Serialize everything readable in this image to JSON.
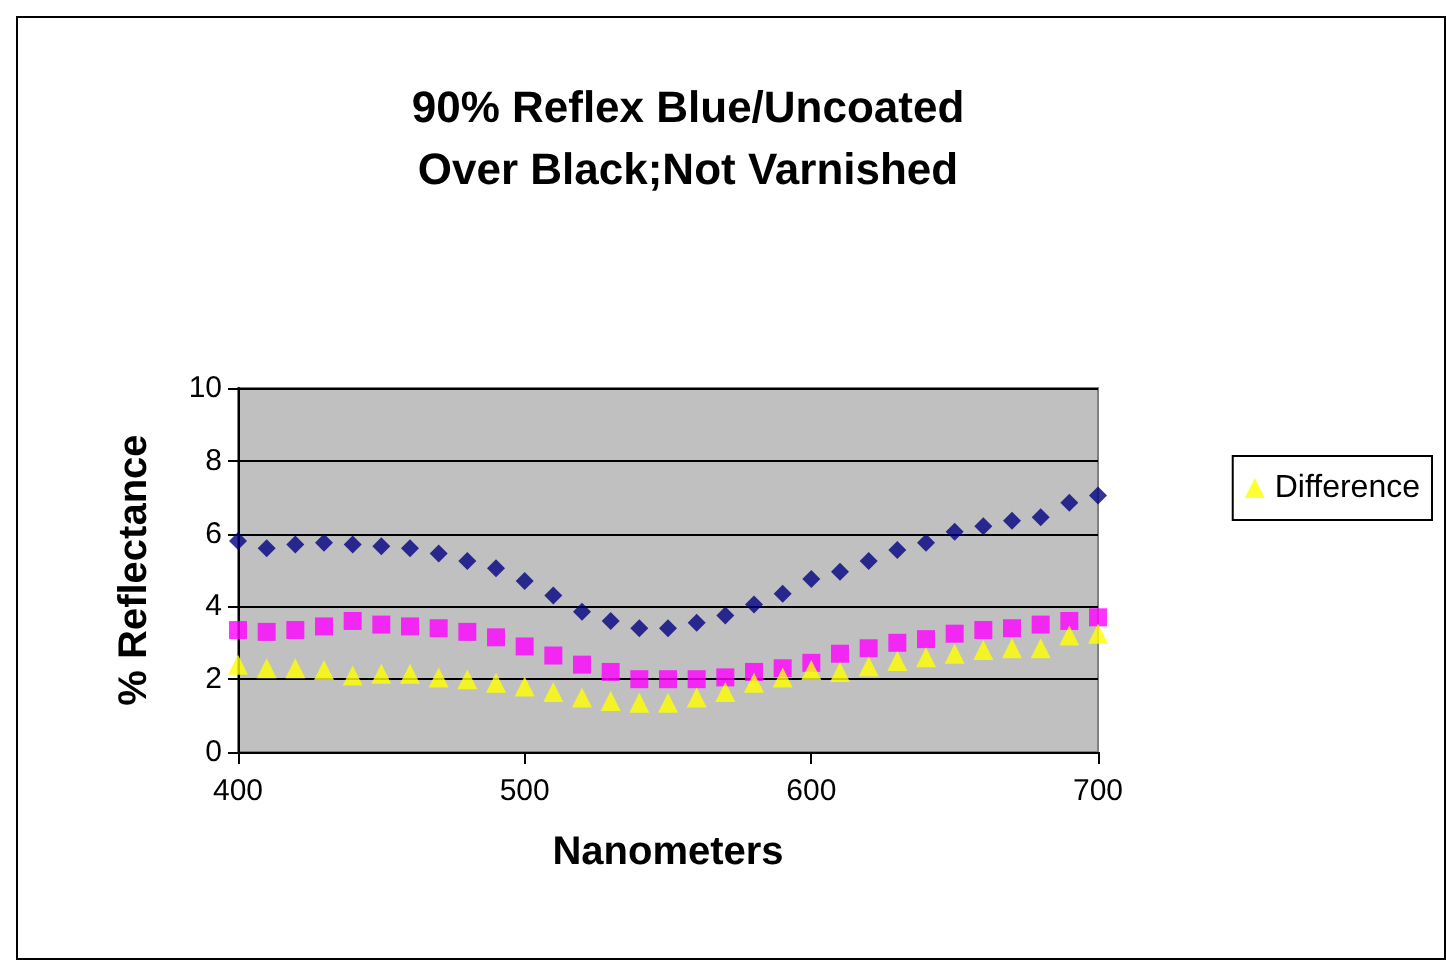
{
  "chart_data": {
    "type": "scatter",
    "title": "90% Reflex Blue/Uncoated\nOver Black;Not Varnished",
    "xlabel": "Nanometers",
    "ylabel": "% Reflectance",
    "x": [
      400,
      410,
      420,
      430,
      440,
      450,
      460,
      470,
      480,
      490,
      500,
      510,
      520,
      530,
      540,
      550,
      560,
      570,
      580,
      590,
      600,
      610,
      620,
      630,
      640,
      650,
      660,
      670,
      680,
      690,
      700
    ],
    "series": [
      {
        "color": "#000080",
        "marker": "diamond",
        "values": [
          5.8,
          5.6,
          5.7,
          5.75,
          5.7,
          5.65,
          5.6,
          5.45,
          5.25,
          5.05,
          4.7,
          4.3,
          3.85,
          3.6,
          3.4,
          3.4,
          3.55,
          3.75,
          4.05,
          4.35,
          4.75,
          4.95,
          5.25,
          5.55,
          5.75,
          6.05,
          6.2,
          6.35,
          6.45,
          6.85,
          7.05
        ]
      },
      {
        "color": "#ff00ff",
        "marker": "square",
        "values": [
          3.35,
          3.3,
          3.35,
          3.45,
          3.6,
          3.5,
          3.45,
          3.4,
          3.3,
          3.15,
          2.9,
          2.65,
          2.4,
          2.2,
          2.0,
          2.0,
          2.0,
          2.05,
          2.2,
          2.3,
          2.45,
          2.7,
          2.85,
          3.0,
          3.1,
          3.25,
          3.35,
          3.4,
          3.5,
          3.6,
          3.7
        ]
      },
      {
        "name": "Difference",
        "color": "#ffff00",
        "marker": "triangle",
        "values": [
          2.4,
          2.3,
          2.3,
          2.25,
          2.1,
          2.15,
          2.15,
          2.05,
          2.0,
          1.9,
          1.8,
          1.65,
          1.5,
          1.4,
          1.35,
          1.35,
          1.5,
          1.65,
          1.9,
          2.05,
          2.25,
          2.2,
          2.35,
          2.5,
          2.6,
          2.7,
          2.8,
          2.85,
          2.85,
          3.2,
          3.25
        ]
      }
    ],
    "xlim": [
      400,
      700
    ],
    "xticks": [
      400,
      500,
      600,
      700
    ],
    "ylim": [
      0,
      10
    ],
    "yticks": [
      0,
      2,
      4,
      6,
      8,
      10
    ],
    "grid": "y",
    "legend": "right"
  }
}
